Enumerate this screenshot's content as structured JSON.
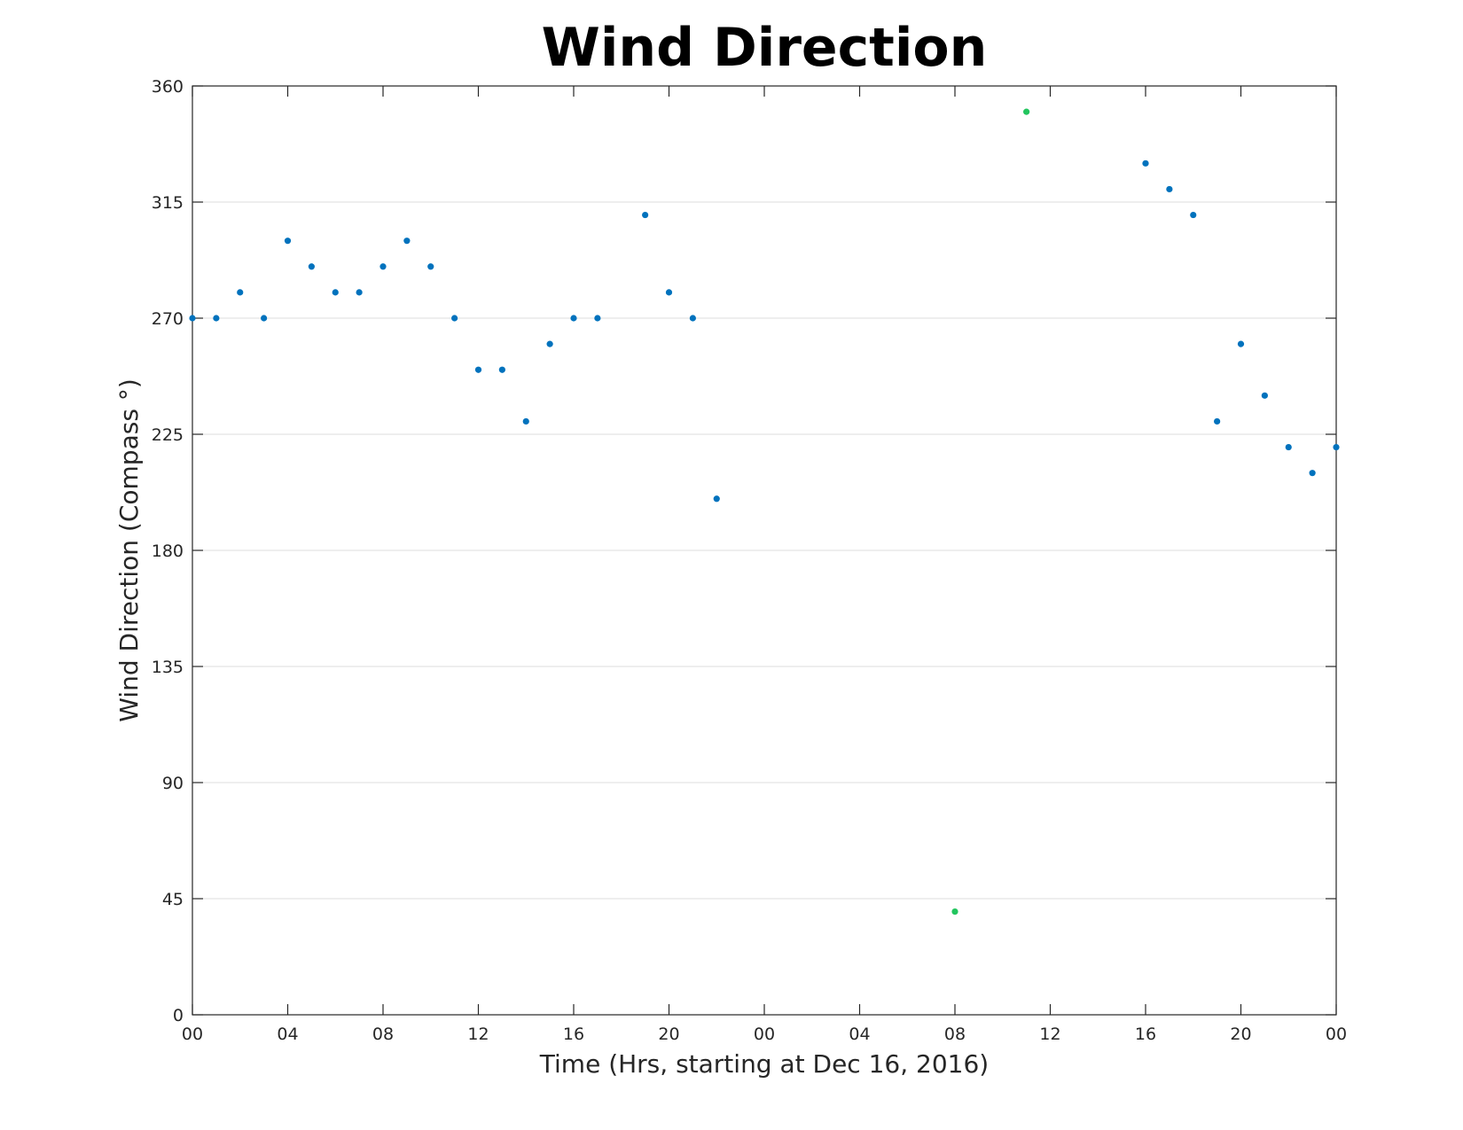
{
  "chart_data": {
    "type": "scatter",
    "title": "Wind Direction",
    "xlabel": "Time (Hrs, starting at Dec 16, 2016)",
    "ylabel": "Wind Direction (Compass °)",
    "xlim": [
      0,
      48
    ],
    "ylim": [
      0,
      360
    ],
    "x_ticks": [
      {
        "value": 0,
        "label": "00"
      },
      {
        "value": 4,
        "label": "04"
      },
      {
        "value": 8,
        "label": "08"
      },
      {
        "value": 12,
        "label": "12"
      },
      {
        "value": 16,
        "label": "16"
      },
      {
        "value": 20,
        "label": "20"
      },
      {
        "value": 24,
        "label": "00"
      },
      {
        "value": 28,
        "label": "04"
      },
      {
        "value": 32,
        "label": "08"
      },
      {
        "value": 36,
        "label": "12"
      },
      {
        "value": 40,
        "label": "16"
      },
      {
        "value": 44,
        "label": "20"
      },
      {
        "value": 48,
        "label": "00"
      }
    ],
    "y_ticks": [
      0,
      45,
      90,
      135,
      180,
      225,
      270,
      315,
      360
    ],
    "grid": "horizontal",
    "colors": {
      "blue": "#0072bd",
      "green": "#22c55e"
    },
    "series": [
      {
        "color": "#0072bd",
        "points": [
          [
            0,
            270
          ],
          [
            1,
            270
          ],
          [
            2,
            280
          ],
          [
            3,
            270
          ],
          [
            4,
            300
          ],
          [
            5,
            290
          ],
          [
            6,
            280
          ],
          [
            7,
            280
          ],
          [
            8,
            290
          ],
          [
            9,
            300
          ],
          [
            10,
            290
          ],
          [
            11,
            270
          ],
          [
            12,
            250
          ],
          [
            13,
            250
          ],
          [
            14,
            230
          ],
          [
            15,
            260
          ],
          [
            16,
            270
          ],
          [
            17,
            270
          ],
          [
            19,
            310
          ],
          [
            20,
            280
          ],
          [
            21,
            270
          ],
          [
            22,
            200
          ],
          [
            40,
            330
          ],
          [
            41,
            320
          ],
          [
            42,
            310
          ],
          [
            43,
            230
          ],
          [
            44,
            260
          ],
          [
            45,
            240
          ],
          [
            46,
            220
          ],
          [
            47,
            210
          ],
          [
            48,
            220
          ]
        ]
      },
      {
        "color": "#22c55e",
        "points": [
          [
            32,
            40
          ],
          [
            35,
            350
          ]
        ]
      }
    ]
  }
}
